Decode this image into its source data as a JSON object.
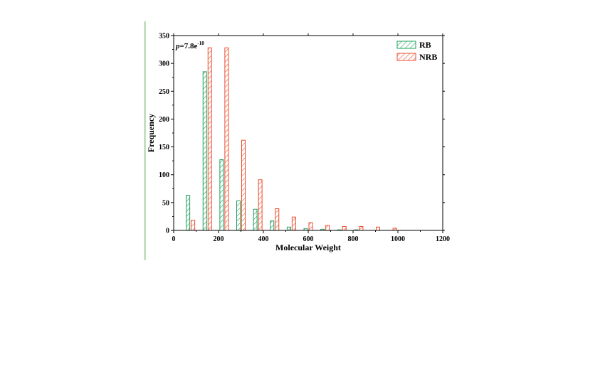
{
  "chart_data": {
    "type": "bar",
    "xlabel": "Molecular Weight",
    "ylabel": "Frequency",
    "xlim": [
      0,
      1200
    ],
    "ylim": [
      0,
      350
    ],
    "xticks": [
      0,
      200,
      400,
      600,
      800,
      1000,
      1200
    ],
    "yticks": [
      0,
      50,
      100,
      150,
      200,
      250,
      300,
      350
    ],
    "grid": false,
    "legend_position": "top-right",
    "annotation": {
      "prefix": "p",
      "value": "=7.8e",
      "exponent": "-18"
    },
    "bin_centers": [
      75,
      150,
      225,
      300,
      375,
      450,
      525,
      600,
      675,
      750,
      825,
      900,
      975
    ],
    "series": [
      {
        "name": "RB",
        "color": "#1aa05a",
        "values": [
          63,
          285,
          127,
          53,
          38,
          17,
          6,
          3,
          2,
          1,
          1,
          0,
          0
        ]
      },
      {
        "name": "NRB",
        "color": "#ee4c2c",
        "values": [
          18,
          328,
          328,
          162,
          91,
          39,
          24,
          14,
          9,
          7,
          7,
          6,
          4
        ]
      }
    ]
  }
}
